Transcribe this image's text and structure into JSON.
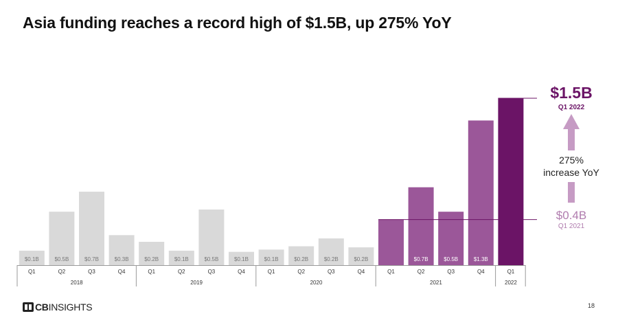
{
  "title": "Asia funding reaches a record high of $1.5B, up 275% YoY",
  "chart_data": {
    "type": "bar",
    "title": "Asia funding reaches a record high of $1.5B, up 275% YoY",
    "ylabel": "",
    "xlabel": "",
    "ylim": [
      0,
      1.65
    ],
    "quarters": [
      "Q1",
      "Q2",
      "Q3",
      "Q4",
      "Q1",
      "Q2",
      "Q3",
      "Q4",
      "Q1",
      "Q2",
      "Q3",
      "Q4",
      "Q1",
      "Q2",
      "Q3",
      "Q4",
      "Q1"
    ],
    "years": [
      {
        "label": "2018",
        "span": 4
      },
      {
        "label": "2019",
        "span": 4
      },
      {
        "label": "2020",
        "span": 4
      },
      {
        "label": "2021",
        "span": 4
      },
      {
        "label": "2022",
        "span": 1
      }
    ],
    "values": [
      0.13,
      0.48,
      0.66,
      0.27,
      0.21,
      0.13,
      0.5,
      0.12,
      0.14,
      0.17,
      0.24,
      0.16,
      0.41,
      0.7,
      0.48,
      1.3,
      1.5
    ],
    "data_labels": [
      "$0.1B",
      "$0.5B",
      "$0.7B",
      "$0.3B",
      "$0.2B",
      "$0.1B",
      "$0.5B",
      "$0.1B",
      "$0.1B",
      "$0.2B",
      "$0.2B",
      "$0.2B",
      "",
      "$0.7B",
      "$0.5B",
      "$1.3B",
      ""
    ],
    "colors": {
      "past": "#d9d9d9",
      "y2021": "#9b5799",
      "q1_2021": "#9b5799",
      "current": "#6b1466",
      "arrow": "#c69bc4",
      "label_past": "#777777",
      "label_on_color": "#ffffff"
    },
    "annotations": {
      "high_value": "$1.5B",
      "high_period": "Q1 2022",
      "change_line1": "275%",
      "change_line2": "increase YoY",
      "base_value": "$0.4B",
      "base_period": "Q1 2021"
    }
  },
  "footer": {
    "logo_bold": "CB",
    "logo_text": "INSIGHTS",
    "page_number": "18"
  }
}
